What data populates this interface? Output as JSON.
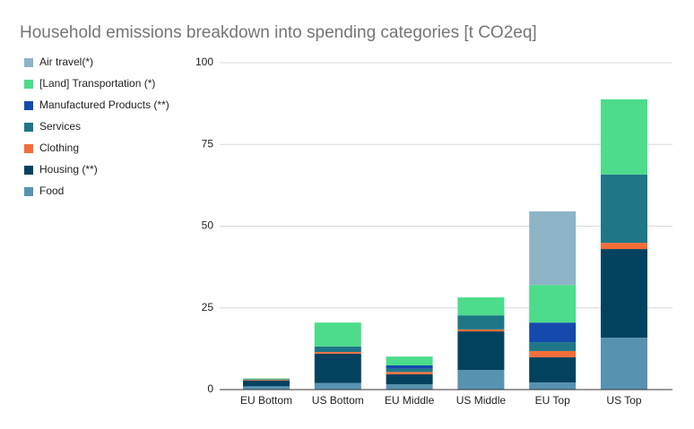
{
  "chart_data": {
    "type": "stacked-bar",
    "title": "Household emissions breakdown into spending categories [t CO2eq]",
    "categories": [
      "EU Bottom",
      "US Bottom",
      "EU Middle",
      "US Middle",
      "EU Top",
      "US Top"
    ],
    "series": [
      {
        "name": "Food",
        "color": "#5793b0",
        "values": [
          1.0,
          2.0,
          1.6,
          6.0,
          2.2,
          15.9
        ]
      },
      {
        "name": "Housing (**)",
        "color": "#02425f",
        "values": [
          1.8,
          9.0,
          3.1,
          11.8,
          7.7,
          27.1
        ]
      },
      {
        "name": "Clothing",
        "color": "#f46d38",
        "values": [
          0.2,
          0.5,
          0.7,
          0.6,
          1.9,
          1.9
        ]
      },
      {
        "name": "Services",
        "color": "#1d7787",
        "values": [
          0.2,
          1.7,
          1.0,
          4.3,
          2.7,
          20.9
        ]
      },
      {
        "name": "Manufactured Products (**)",
        "color": "#1549ad",
        "values": [
          0,
          0,
          1.0,
          0,
          6.0,
          0
        ]
      },
      {
        "name": "[Land] Transportation (*)",
        "color": "#4cdc8b",
        "values": [
          0.2,
          7.3,
          2.7,
          5.5,
          11.5,
          23.0
        ]
      },
      {
        "name": "Air travel(*)",
        "color": "#8db3c7",
        "values": [
          0,
          0,
          0,
          0,
          22.5,
          0
        ]
      }
    ],
    "ylim": [
      0,
      100
    ],
    "yticks": [
      0,
      25,
      50,
      75,
      100
    ],
    "grid": true
  }
}
